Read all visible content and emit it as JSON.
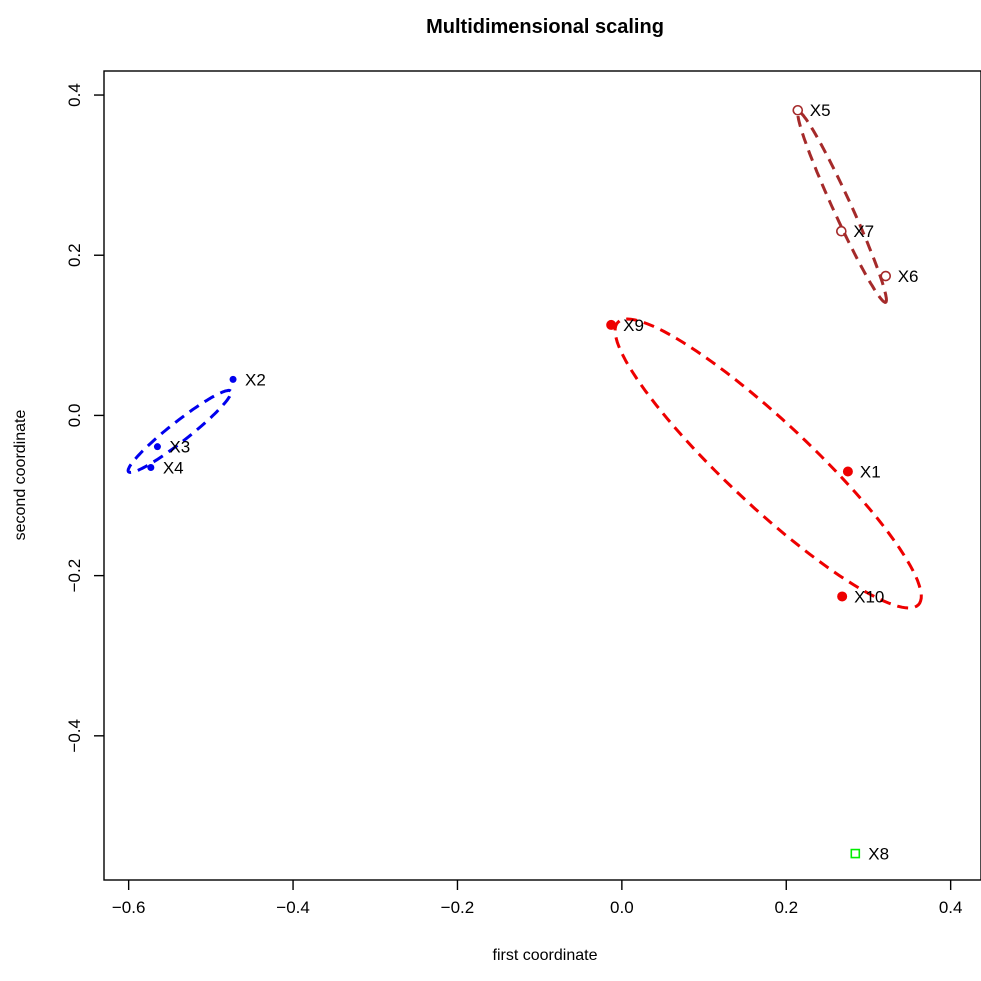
{
  "chart_data": {
    "type": "scatter",
    "title": "Multidimensional scaling",
    "xlabel": "first coordinate",
    "ylabel": "second coordinate",
    "xlim": [
      -0.63,
      0.44
    ],
    "ylim": [
      -0.58,
      0.43
    ],
    "xticks": [
      -0.6,
      -0.4,
      -0.2,
      0.0,
      0.2,
      0.4
    ],
    "yticks": [
      -0.4,
      -0.2,
      0.0,
      0.2,
      0.4
    ],
    "grid": false,
    "groups": [
      {
        "color": "#0000ee",
        "marker": "filled-dot-small",
        "points": [
          {
            "label": "X2",
            "x": -0.473,
            "y": 0.045
          },
          {
            "label": "X3",
            "x": -0.565,
            "y": -0.039
          },
          {
            "label": "X4",
            "x": -0.573,
            "y": -0.065
          }
        ],
        "ellipse": {
          "cx": -0.538,
          "cy": -0.02,
          "rx": 0.08,
          "ry": 0.012,
          "angle_deg": 39
        }
      },
      {
        "color": "#ee0000",
        "marker": "filled-dot",
        "points": [
          {
            "label": "X9",
            "x": -0.013,
            "y": 0.113
          },
          {
            "label": "X1",
            "x": 0.275,
            "y": -0.07
          },
          {
            "label": "X10",
            "x": 0.268,
            "y": -0.226
          }
        ],
        "ellipse": {
          "cx": 0.178,
          "cy": -0.06,
          "rx": 0.254,
          "ry": 0.052,
          "angle_deg": -44
        }
      },
      {
        "color": "#a52a2a",
        "marker": "open-circle",
        "points": [
          {
            "label": "X5",
            "x": 0.214,
            "y": 0.381
          },
          {
            "label": "X7",
            "x": 0.267,
            "y": 0.23
          },
          {
            "label": "X6",
            "x": 0.321,
            "y": 0.174
          }
        ],
        "ellipse": {
          "cx": 0.268,
          "cy": 0.26,
          "rx": 0.13,
          "ry": 0.011,
          "angle_deg": -66
        }
      },
      {
        "color": "#00ee00",
        "marker": "open-square",
        "points": [
          {
            "label": "X8",
            "x": 0.284,
            "y": -0.547
          }
        ]
      }
    ]
  }
}
